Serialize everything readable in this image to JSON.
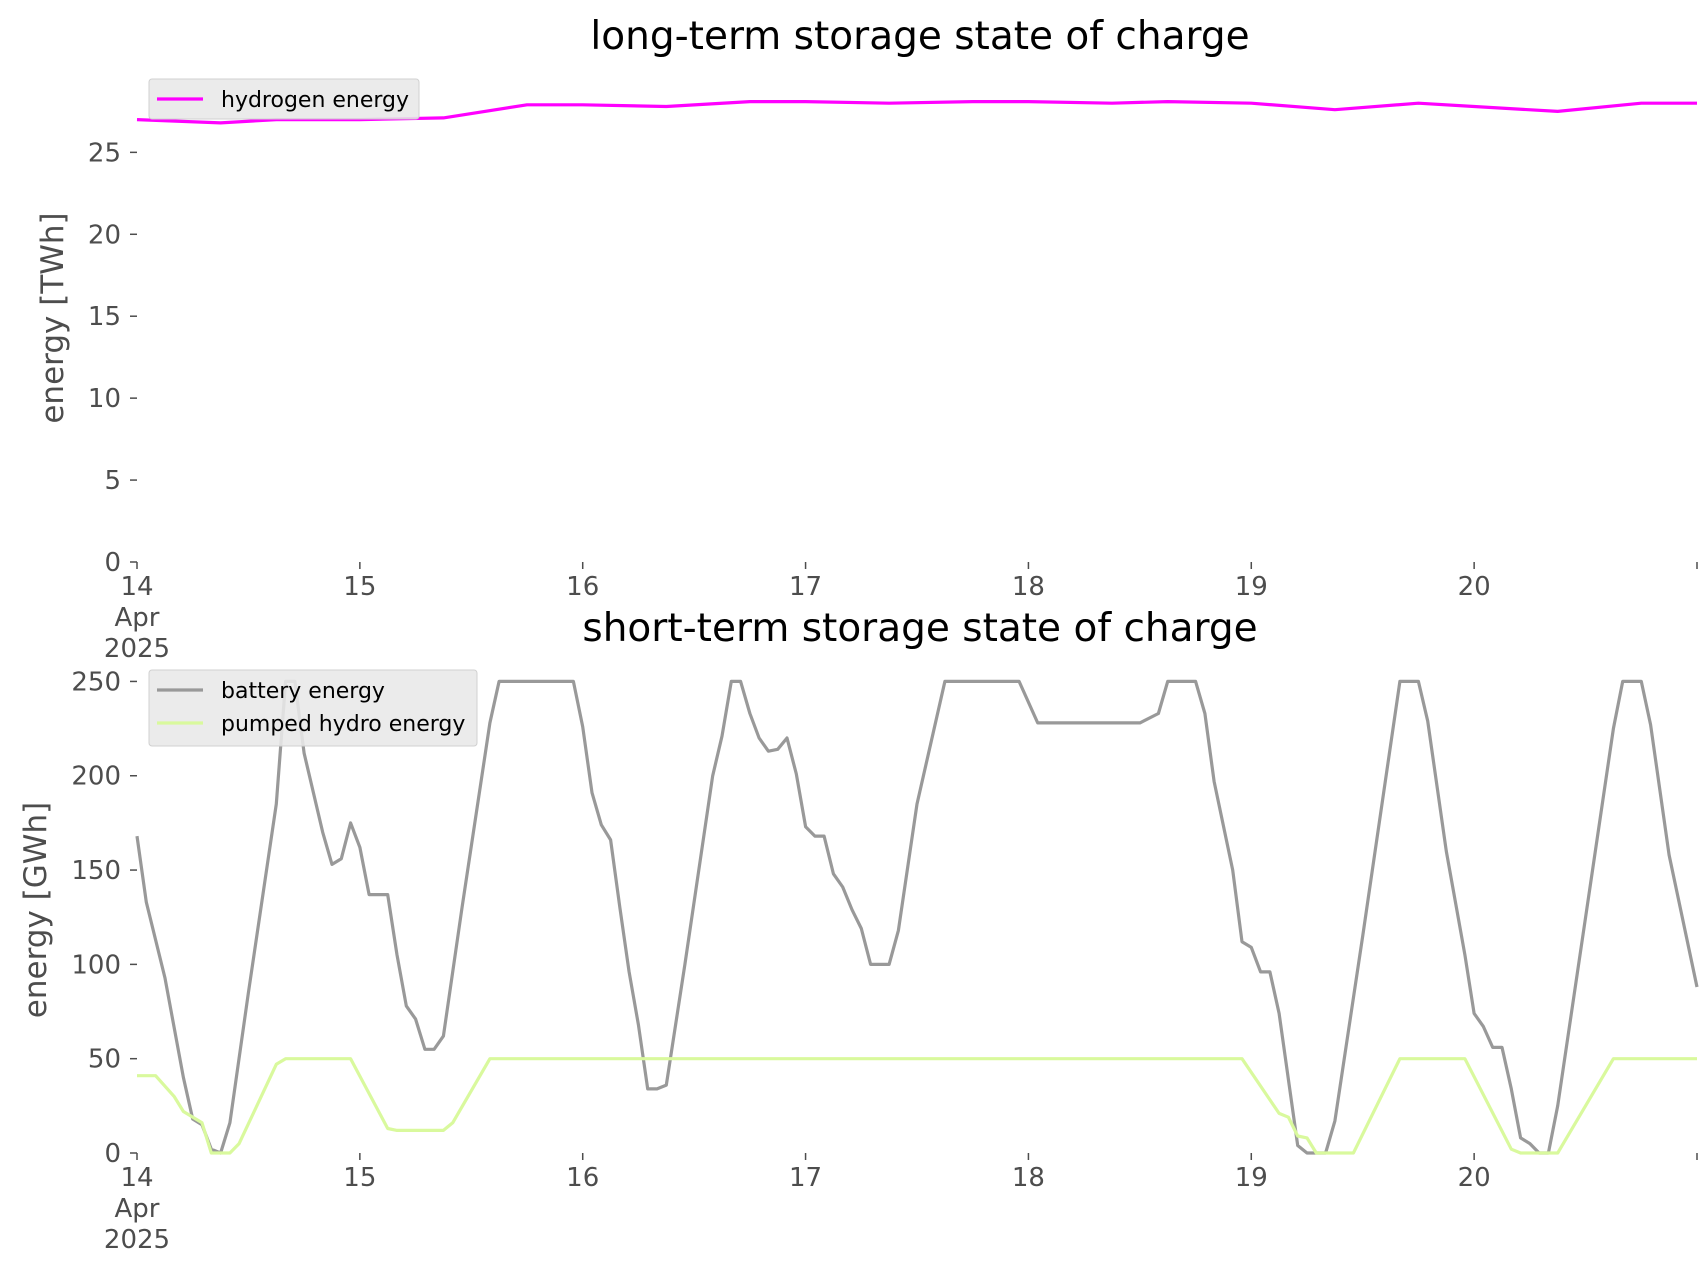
{
  "chart_data": [
    {
      "type": "line",
      "title": "long-term storage state of charge",
      "ylabel": "energy [TWh]",
      "xlabel": "",
      "xlim": [
        "2025-04-14 00:00",
        "2025-04-21 00:00"
      ],
      "ylim": [
        0,
        28.5
      ],
      "yticks": [
        0,
        5,
        10,
        15,
        20,
        25
      ],
      "xticks": [
        {
          "date": "2025-04-14",
          "label": [
            "14",
            "Apr",
            "2025"
          ]
        },
        {
          "date": "2025-04-15",
          "label": [
            "15"
          ]
        },
        {
          "date": "2025-04-16",
          "label": [
            "16"
          ]
        },
        {
          "date": "2025-04-17",
          "label": [
            "17"
          ]
        },
        {
          "date": "2025-04-18",
          "label": [
            "18"
          ]
        },
        {
          "date": "2025-04-19",
          "label": [
            "19"
          ]
        },
        {
          "date": "2025-04-20",
          "label": [
            "20"
          ]
        }
      ],
      "grid": false,
      "legend": "top-left",
      "series": [
        {
          "name": "hydrogen energy",
          "color": "#ff00ff",
          "points": [
            [
              "2025-04-14 00:00",
              27.0
            ],
            [
              "2025-04-14 09:00",
              26.8
            ],
            [
              "2025-04-14 15:00",
              27.0
            ],
            [
              "2025-04-15 00:00",
              27.0
            ],
            [
              "2025-04-15 09:00",
              27.1
            ],
            [
              "2025-04-15 18:00",
              27.9
            ],
            [
              "2025-04-16 00:00",
              27.9
            ],
            [
              "2025-04-16 09:00",
              27.8
            ],
            [
              "2025-04-16 18:00",
              28.1
            ],
            [
              "2025-04-17 00:00",
              28.1
            ],
            [
              "2025-04-17 09:00",
              28.0
            ],
            [
              "2025-04-17 18:00",
              28.1
            ],
            [
              "2025-04-18 00:00",
              28.1
            ],
            [
              "2025-04-18 09:00",
              28.0
            ],
            [
              "2025-04-18 15:00",
              28.1
            ],
            [
              "2025-04-19 00:00",
              28.0
            ],
            [
              "2025-04-19 09:00",
              27.6
            ],
            [
              "2025-04-19 18:00",
              28.0
            ],
            [
              "2025-04-20 00:00",
              27.8
            ],
            [
              "2025-04-20 09:00",
              27.5
            ],
            [
              "2025-04-20 18:00",
              28.0
            ],
            [
              "2025-04-21 00:00",
              28.0
            ]
          ]
        }
      ]
    },
    {
      "type": "line",
      "title": "short-term storage state of charge",
      "ylabel": "energy [GWh]",
      "xlabel": "",
      "xlim": [
        "2025-04-14 00:00",
        "2025-04-21 00:00"
      ],
      "ylim": [
        0,
        255
      ],
      "yticks": [
        0,
        50,
        100,
        150,
        200,
        250
      ],
      "xticks": [
        {
          "date": "2025-04-14",
          "label": [
            "14",
            "Apr",
            "2025"
          ]
        },
        {
          "date": "2025-04-15",
          "label": [
            "15"
          ]
        },
        {
          "date": "2025-04-16",
          "label": [
            "16"
          ]
        },
        {
          "date": "2025-04-17",
          "label": [
            "17"
          ]
        },
        {
          "date": "2025-04-18",
          "label": [
            "18"
          ]
        },
        {
          "date": "2025-04-19",
          "label": [
            "19"
          ]
        },
        {
          "date": "2025-04-20",
          "label": [
            "20"
          ]
        }
      ],
      "grid": false,
      "legend": "top-left",
      "series": [
        {
          "name": "battery energy",
          "color": "#999999",
          "points": [
            [
              "2025-04-14 00:00",
              168
            ],
            [
              "2025-04-14 01:00",
              133
            ],
            [
              "2025-04-14 03:00",
              93
            ],
            [
              "2025-04-14 05:00",
              40
            ],
            [
              "2025-04-14 06:00",
              18
            ],
            [
              "2025-04-14 07:00",
              15
            ],
            [
              "2025-04-14 08:00",
              2
            ],
            [
              "2025-04-14 09:00",
              0
            ],
            [
              "2025-04-14 10:00",
              16
            ],
            [
              "2025-04-14 12:00",
              85
            ],
            [
              "2025-04-14 15:00",
              185
            ],
            [
              "2025-04-14 16:00",
              250
            ],
            [
              "2025-04-14 17:00",
              250
            ],
            [
              "2025-04-14 18:00",
              212
            ],
            [
              "2025-04-14 20:00",
              170
            ],
            [
              "2025-04-14 21:00",
              153
            ],
            [
              "2025-04-14 22:00",
              156
            ],
            [
              "2025-04-14 23:00",
              175
            ],
            [
              "2025-04-15 00:00",
              162
            ],
            [
              "2025-04-15 01:00",
              137
            ],
            [
              "2025-04-15 03:00",
              137
            ],
            [
              "2025-04-15 04:00",
              105
            ],
            [
              "2025-04-15 05:00",
              78
            ],
            [
              "2025-04-15 06:00",
              71
            ],
            [
              "2025-04-15 07:00",
              55
            ],
            [
              "2025-04-15 08:00",
              55
            ],
            [
              "2025-04-15 09:00",
              62
            ],
            [
              "2025-04-15 11:00",
              130
            ],
            [
              "2025-04-15 14:00",
              228
            ],
            [
              "2025-04-15 15:00",
              250
            ],
            [
              "2025-04-15 23:00",
              250
            ],
            [
              "2025-04-16 00:00",
              226
            ],
            [
              "2025-04-16 01:00",
              191
            ],
            [
              "2025-04-16 02:00",
              174
            ],
            [
              "2025-04-16 03:00",
              166
            ],
            [
              "2025-04-16 04:00",
              130
            ],
            [
              "2025-04-16 05:00",
              96
            ],
            [
              "2025-04-16 06:00",
              68
            ],
            [
              "2025-04-16 07:00",
              34
            ],
            [
              "2025-04-16 08:00",
              34
            ],
            [
              "2025-04-16 09:00",
              36
            ],
            [
              "2025-04-16 11:00",
              100
            ],
            [
              "2025-04-16 14:00",
              200
            ],
            [
              "2025-04-16 15:00",
              221
            ],
            [
              "2025-04-16 16:00",
              250
            ],
            [
              "2025-04-16 17:00",
              250
            ],
            [
              "2025-04-16 18:00",
              233
            ],
            [
              "2025-04-16 19:00",
              220
            ],
            [
              "2025-04-16 20:00",
              213
            ],
            [
              "2025-04-16 21:00",
              214
            ],
            [
              "2025-04-16 22:00",
              220
            ],
            [
              "2025-04-16 23:00",
              201
            ],
            [
              "2025-04-17 00:00",
              173
            ],
            [
              "2025-04-17 01:00",
              168
            ],
            [
              "2025-04-17 02:00",
              168
            ],
            [
              "2025-04-17 03:00",
              148
            ],
            [
              "2025-04-17 04:00",
              141
            ],
            [
              "2025-04-17 05:00",
              129
            ],
            [
              "2025-04-17 06:00",
              119
            ],
            [
              "2025-04-17 07:00",
              100
            ],
            [
              "2025-04-17 09:00",
              100
            ],
            [
              "2025-04-17 10:00",
              118
            ],
            [
              "2025-04-17 12:00",
              185
            ],
            [
              "2025-04-17 15:00",
              250
            ],
            [
              "2025-04-17 23:00",
              250
            ],
            [
              "2025-04-18 01:00",
              228
            ],
            [
              "2025-04-18 12:00",
              228
            ],
            [
              "2025-04-18 14:00",
              233
            ],
            [
              "2025-04-18 15:00",
              250
            ],
            [
              "2025-04-18 18:00",
              250
            ],
            [
              "2025-04-18 19:00",
              233
            ],
            [
              "2025-04-18 20:00",
              197
            ],
            [
              "2025-04-18 22:00",
              150
            ],
            [
              "2025-04-18 23:00",
              112
            ],
            [
              "2025-04-19 00:00",
              109
            ],
            [
              "2025-04-19 01:00",
              96
            ],
            [
              "2025-04-19 02:00",
              96
            ],
            [
              "2025-04-19 03:00",
              74
            ],
            [
              "2025-04-19 05:00",
              4
            ],
            [
              "2025-04-19 06:00",
              0
            ],
            [
              "2025-04-19 08:00",
              0
            ],
            [
              "2025-04-19 09:00",
              17
            ],
            [
              "2025-04-19 12:00",
              115
            ],
            [
              "2025-04-19 16:00",
              250
            ],
            [
              "2025-04-19 18:00",
              250
            ],
            [
              "2025-04-19 19:00",
              229
            ],
            [
              "2025-04-19 21:00",
              160
            ],
            [
              "2025-04-19 23:00",
              105
            ],
            [
              "2025-04-20 00:00",
              74
            ],
            [
              "2025-04-20 01:00",
              67
            ],
            [
              "2025-04-20 02:00",
              56
            ],
            [
              "2025-04-20 03:00",
              56
            ],
            [
              "2025-04-20 04:00",
              34
            ],
            [
              "2025-04-20 05:00",
              8
            ],
            [
              "2025-04-20 06:00",
              5
            ],
            [
              "2025-04-20 07:00",
              0
            ],
            [
              "2025-04-20 08:00",
              0
            ],
            [
              "2025-04-20 09:00",
              25
            ],
            [
              "2025-04-20 12:00",
              125
            ],
            [
              "2025-04-20 15:00",
              225
            ],
            [
              "2025-04-20 16:00",
              250
            ],
            [
              "2025-04-20 18:00",
              250
            ],
            [
              "2025-04-20 19:00",
              227
            ],
            [
              "2025-04-20 21:00",
              158
            ],
            [
              "2025-04-21 00:00",
              88
            ]
          ]
        },
        {
          "name": "pumped hydro energy",
          "color": "#d9f99d",
          "points": [
            [
              "2025-04-14 00:00",
              41
            ],
            [
              "2025-04-14 02:00",
              41
            ],
            [
              "2025-04-14 04:00",
              30
            ],
            [
              "2025-04-14 05:00",
              22
            ],
            [
              "2025-04-14 07:00",
              16
            ],
            [
              "2025-04-14 08:00",
              0
            ],
            [
              "2025-04-14 10:00",
              0
            ],
            [
              "2025-04-14 11:00",
              5
            ],
            [
              "2025-04-14 15:00",
              47
            ],
            [
              "2025-04-14 16:00",
              50
            ],
            [
              "2025-04-14 23:00",
              50
            ],
            [
              "2025-04-15 03:00",
              13
            ],
            [
              "2025-04-15 04:00",
              12
            ],
            [
              "2025-04-15 09:00",
              12
            ],
            [
              "2025-04-15 10:00",
              16
            ],
            [
              "2025-04-15 14:00",
              50
            ],
            [
              "2025-04-18 23:00",
              50
            ],
            [
              "2025-04-19 03:00",
              21
            ],
            [
              "2025-04-19 04:00",
              19
            ],
            [
              "2025-04-19 05:00",
              9
            ],
            [
              "2025-04-19 06:00",
              8
            ],
            [
              "2025-04-19 07:00",
              0
            ],
            [
              "2025-04-19 11:00",
              0
            ],
            [
              "2025-04-19 16:00",
              50
            ],
            [
              "2025-04-19 23:00",
              50
            ],
            [
              "2025-04-20 04:00",
              2
            ],
            [
              "2025-04-20 05:00",
              0
            ],
            [
              "2025-04-20 09:00",
              0
            ],
            [
              "2025-04-20 15:00",
              50
            ],
            [
              "2025-04-21 00:00",
              50
            ]
          ]
        }
      ]
    }
  ]
}
